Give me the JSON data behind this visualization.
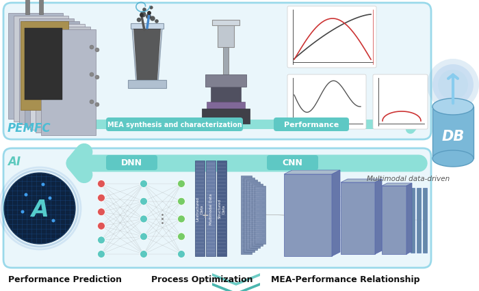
{
  "bg_color": "#ffffff",
  "pemfc_label": "PEMFC",
  "ai_label": "AI",
  "mea_label": "MEA synthesis and characterization",
  "perf_label": "Performance",
  "multimodal_label": "Multimodal data-driven",
  "db_label": "DB",
  "dnn_label": "DNN",
  "cnn_label": "CNN",
  "bottom_labels": [
    "Performance Prediction",
    "Process Optimization",
    "MEA-Performance Relationship"
  ],
  "top_box_fill": "#eaf6fb",
  "top_box_edge": "#9ad9ea",
  "bot_box_fill": "#eaf6fb",
  "bot_box_edge": "#9ad9ea",
  "teal_btn_fill": "#5ec8c4",
  "teal_arrow_fill": "#8de0d8",
  "pemfc_color": "#4bbdd4",
  "ai_color": "#5dc9be",
  "db_body_color": "#7ab8d8",
  "db_top_color": "#aad4ec",
  "db_edge_color": "#5a9cc0",
  "node_red": "#e05555",
  "node_teal": "#5bc8c0",
  "node_green": "#77cc66",
  "nn_line_color": "#999999",
  "data_col_colors": [
    "#6a7ea8",
    "#7a8eb8",
    "#5a6e98"
  ],
  "cnn_cube_front": "#8899bb",
  "cnn_cube_top": "#aabbcc",
  "cnn_cube_right": "#6677aa",
  "cnn_thin_color": "#6688aa",
  "chart_bg": "#ffffff",
  "chart_line1": "#444444",
  "chart_line2": "#cc3333",
  "chevron_top": "#6dccc5",
  "chevron_bot": "#4ab5ae"
}
